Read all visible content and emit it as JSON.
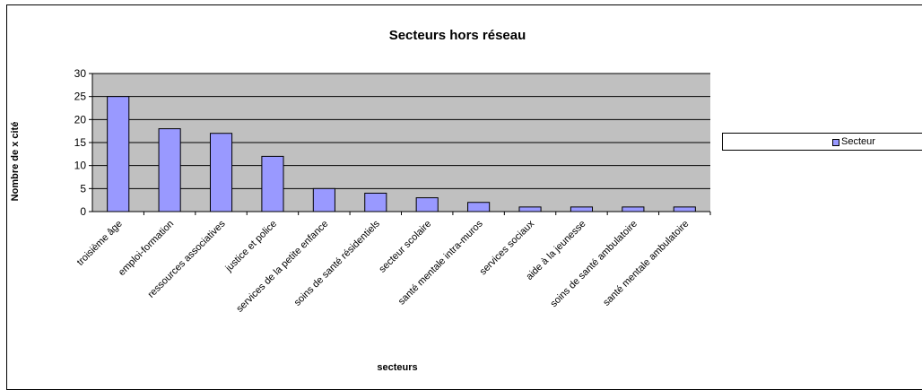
{
  "chart_data": {
    "type": "bar",
    "title": "Secteurs hors réseau",
    "xlabel": "secteurs",
    "ylabel": "Nombre de x cité",
    "categories": [
      "troisième âge",
      "emploi-formation",
      "ressources associatives",
      "justice et police",
      "services de la petite enfance",
      "soins de santé résidentiels",
      "secteur scolaire",
      "santé mentale intra-muros",
      "services sociaux",
      "aide à la jeunesse",
      "soins de santé ambulatoire",
      "santé mentale ambulatoire"
    ],
    "series": [
      {
        "name": "Secteur",
        "values": [
          25,
          18,
          17,
          12,
          5,
          4,
          3,
          2,
          1,
          1,
          1,
          1
        ]
      }
    ],
    "ylim": [
      0,
      30
    ],
    "yticks": [
      0,
      5,
      10,
      15,
      20,
      25,
      30
    ],
    "grid": true,
    "legend_position": "right",
    "colors": {
      "bar": "#9999ff",
      "plot_background": "#c0c0c0",
      "gridline": "#000000"
    }
  }
}
